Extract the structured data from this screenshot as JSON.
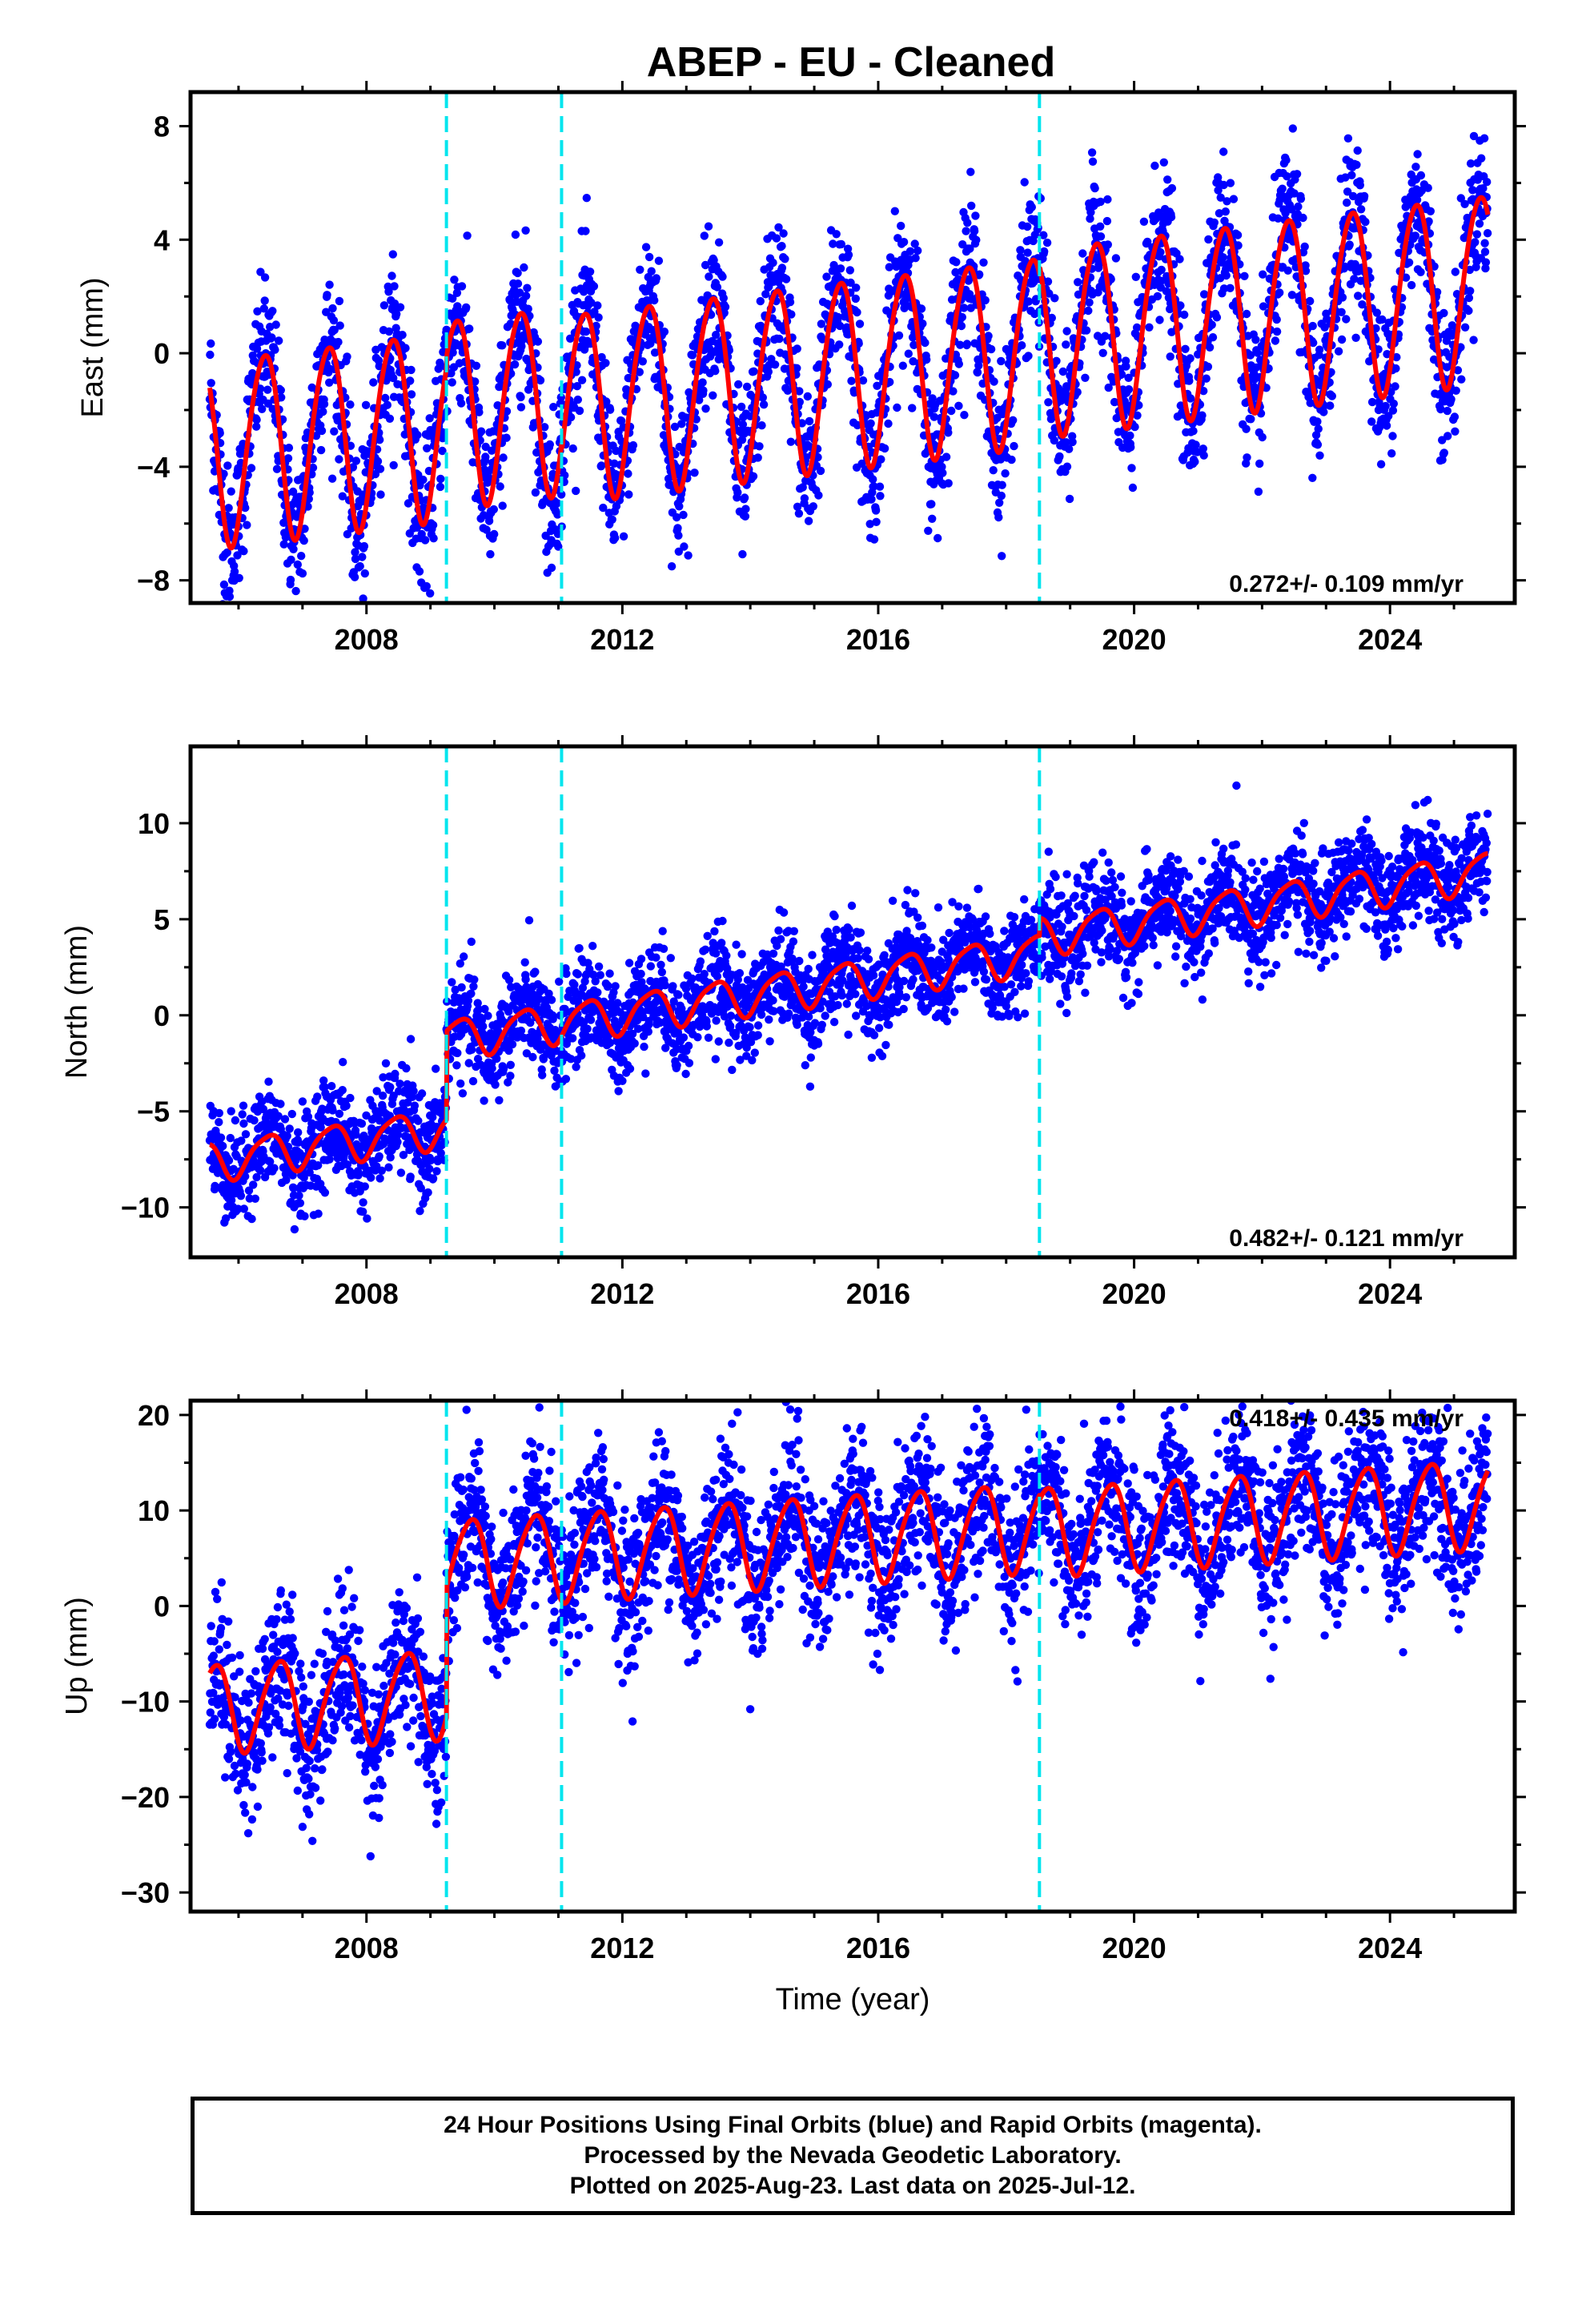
{
  "chart_data": [
    {
      "type": "scatter",
      "title": "ABEP  - EU - Cleaned",
      "ylabel": "East (mm)",
      "xlim": [
        2005.25,
        2025.95
      ],
      "ylim": [
        -8.8,
        9.2
      ],
      "yticks": [
        -8,
        -4,
        0,
        4,
        8
      ],
      "xticks": [
        2008,
        2012,
        2016,
        2020,
        2024
      ],
      "rate_text": "0.272+/- 0.109 mm/yr",
      "rate_position": "bottom-right",
      "grid": false,
      "breaks": [
        2009.25,
        2011.05,
        2018.52
      ],
      "series": [
        {
          "role": "daily positions",
          "color": "#0000ff",
          "x_range": [
            2005.55,
            2025.53
          ],
          "scatter_sd": 1.3
        },
        {
          "role": "model fit",
          "color": "#ff0000",
          "segments": [
            {
              "x": [
                2005.55,
                2025.53
              ],
              "offset_at_start": -3.4,
              "rate": 0.272,
              "annual_amplitude": 3.3,
              "annual_phase_year": 0.4,
              "semiannual_amplitude": 0.3,
              "semiannual_phase_year": 0.1,
              "offset_steps": [
                {
                  "at": 2009.25,
                  "step": 0.4
                },
                {
                  "at": 2011.05,
                  "step": -0.3
                },
                {
                  "at": 2018.52,
                  "step": 0.3
                }
              ]
            }
          ]
        }
      ]
    },
    {
      "type": "scatter",
      "ylabel": "North (mm)",
      "xlim": [
        2005.25,
        2025.95
      ],
      "ylim": [
        -12.6,
        14.0
      ],
      "yticks": [
        -10,
        -5,
        0,
        5,
        10
      ],
      "xticks": [
        2008,
        2012,
        2016,
        2020,
        2024
      ],
      "rate_text": "0.482+/- 0.121 mm/yr",
      "rate_position": "bottom-right",
      "grid": false,
      "breaks": [
        2009.25,
        2011.05,
        2018.52
      ],
      "series": [
        {
          "role": "daily positions",
          "color": "#0000ff",
          "x_range": [
            2005.55,
            2025.53
          ],
          "scatter_sd": 1.3
        },
        {
          "role": "model fit",
          "color": "#ff0000",
          "segments": [
            {
              "x": [
                2005.55,
                2025.53
              ],
              "offset_at_start": -7.6,
              "rate": 0.482,
              "annual_amplitude": 1.0,
              "annual_phase_year": 0.45,
              "semiannual_amplitude": 0.2,
              "semiannual_phase_year": 0.15,
              "offset_steps": [
                {
                  "at": 2009.25,
                  "step": 4.6
                },
                {
                  "at": 2011.05,
                  "step": 0.0
                },
                {
                  "at": 2018.52,
                  "step": 0.9
                }
              ]
            }
          ]
        }
      ]
    },
    {
      "type": "scatter",
      "ylabel": "Up (mm)",
      "xlabel": "Time (year)",
      "xlim": [
        2005.25,
        2025.95
      ],
      "ylim": [
        -32,
        21.5
      ],
      "yticks": [
        -30,
        -20,
        -10,
        0,
        10,
        20
      ],
      "xticks": [
        2008,
        2012,
        2016,
        2020,
        2024
      ],
      "rate_text": "0.418+/- 0.435 mm/yr",
      "rate_position": "top-right",
      "grid": false,
      "breaks": [
        2009.25,
        2011.05,
        2018.52
      ],
      "series": [
        {
          "role": "daily positions",
          "color": "#0000ff",
          "x_range": [
            2005.55,
            2025.53
          ],
          "scatter_sd": 4.0
        },
        {
          "role": "model fit",
          "color": "#ff0000",
          "segments": [
            {
              "x": [
                2005.55,
                2025.53
              ],
              "offset_at_start": -10.6,
              "rate": 0.418,
              "annual_amplitude": 4.6,
              "annual_phase_year": 0.62,
              "semiannual_amplitude": 0.6,
              "semiannual_phase_year": 0.3,
              "offset_steps": [
                {
                  "at": 2009.25,
                  "step": 13.6
                },
                {
                  "at": 2011.05,
                  "step": 0.0
                },
                {
                  "at": 2018.52,
                  "step": -0.5
                }
              ]
            }
          ]
        }
      ]
    }
  ],
  "footer": {
    "line1": "24 Hour Positions Using Final Orbits (blue) and Rapid Orbits (magenta).",
    "line2": "Processed by the Nevada Geodetic Laboratory.",
    "line3": "Plotted on 2025-Aug-23. Last data on 2025-Jul-12."
  },
  "colors": {
    "points": "#0000ff",
    "fit": "#ff0000",
    "breaks": "#00e5ee",
    "frame": "#000000"
  }
}
